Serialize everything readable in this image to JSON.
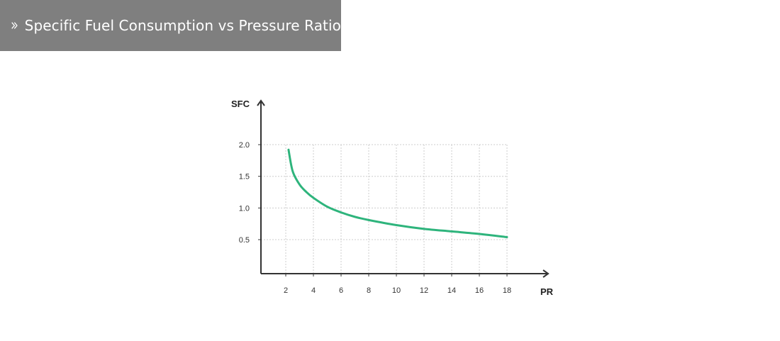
{
  "header": {
    "title": "Specific Fuel Consumption vs Pressure Ratio",
    "icon": "double-chevron-right-icon",
    "background": "#7f7f7f"
  },
  "chart_data": {
    "type": "line",
    "title": "Specific Fuel Consumption vs Pressure Ratio",
    "xlabel": "PR",
    "ylabel": "SFC",
    "xlim": [
      0,
      18
    ],
    "ylim": [
      0,
      2.0
    ],
    "x_ticks": [
      2,
      4,
      6,
      8,
      10,
      12,
      14,
      16,
      18
    ],
    "y_ticks": [
      0.5,
      1.0,
      1.5,
      2.0
    ],
    "x_tick_labels": [
      "2",
      "4",
      "6",
      "8",
      "10",
      "12",
      "14",
      "16",
      "18"
    ],
    "y_tick_labels": [
      "0.5",
      "1.0",
      "1.5",
      "2.0"
    ],
    "grid": true,
    "series": [
      {
        "color": "#2eb47c",
        "x": [
          2.2,
          2.5,
          3.0,
          3.5,
          4.0,
          5.0,
          6.0,
          7.0,
          8.0,
          10.0,
          12.0,
          14.0,
          16.0,
          18.0
        ],
        "y": [
          1.92,
          1.58,
          1.37,
          1.25,
          1.16,
          1.02,
          0.93,
          0.86,
          0.81,
          0.73,
          0.67,
          0.63,
          0.59,
          0.54
        ]
      }
    ],
    "colors": {
      "axis": "#333333",
      "grid": "#cccccc"
    }
  }
}
